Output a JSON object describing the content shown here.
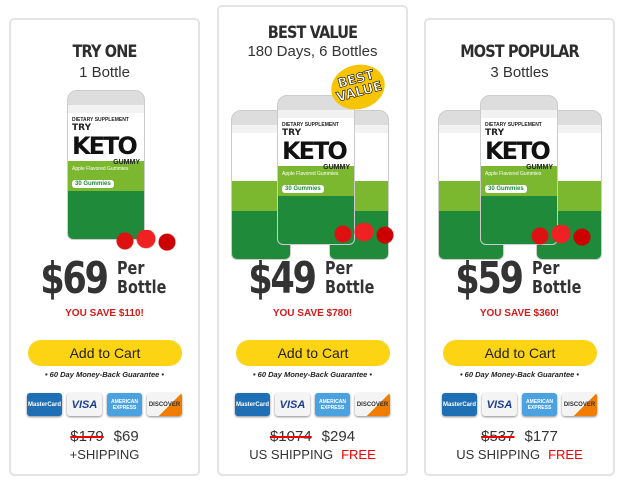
{
  "bottle_label": {
    "supplement": "DIETARY SUPPLEMENT",
    "try": "TRY",
    "keto": "KETO",
    "gummy": "GUMMY",
    "flavor": "Apple Flavored Gummies",
    "count": "30 Gummies"
  },
  "badge": "BEST VALUE",
  "guarantee": "• 60 Day Money-Back Guarantee •",
  "button_label": "Add to Cart",
  "per_bottle": "Per Bottle",
  "payment": {
    "mastercard": "MasterCard",
    "visa": "VISA",
    "amex": "AMERICAN EXPRESS",
    "discover": "DISCOVER"
  },
  "colors": {
    "button": "#fcd413",
    "save": "#d31a1a",
    "free": "#e00000"
  },
  "cards": [
    {
      "title": "TRY ONE",
      "subtitle": "1 Bottle",
      "price": "$69",
      "save": "YOU SAVE $110!",
      "original": "$179",
      "total": "$69",
      "shipping": "+SHIPPING",
      "free": ""
    },
    {
      "title": "BEST VALUE",
      "subtitle": "180 Days, 6 Bottles",
      "price": "$49",
      "save": "YOU SAVE $780!",
      "original": "$1074",
      "total": "$294",
      "shipping": "US SHIPPING",
      "free": "FREE"
    },
    {
      "title": "MOST POPULAR",
      "subtitle": "3 Bottles",
      "price": "$59",
      "save": "YOU SAVE $360!",
      "original": "$537",
      "total": "$177",
      "shipping": "US SHIPPING",
      "free": "FREE"
    }
  ]
}
